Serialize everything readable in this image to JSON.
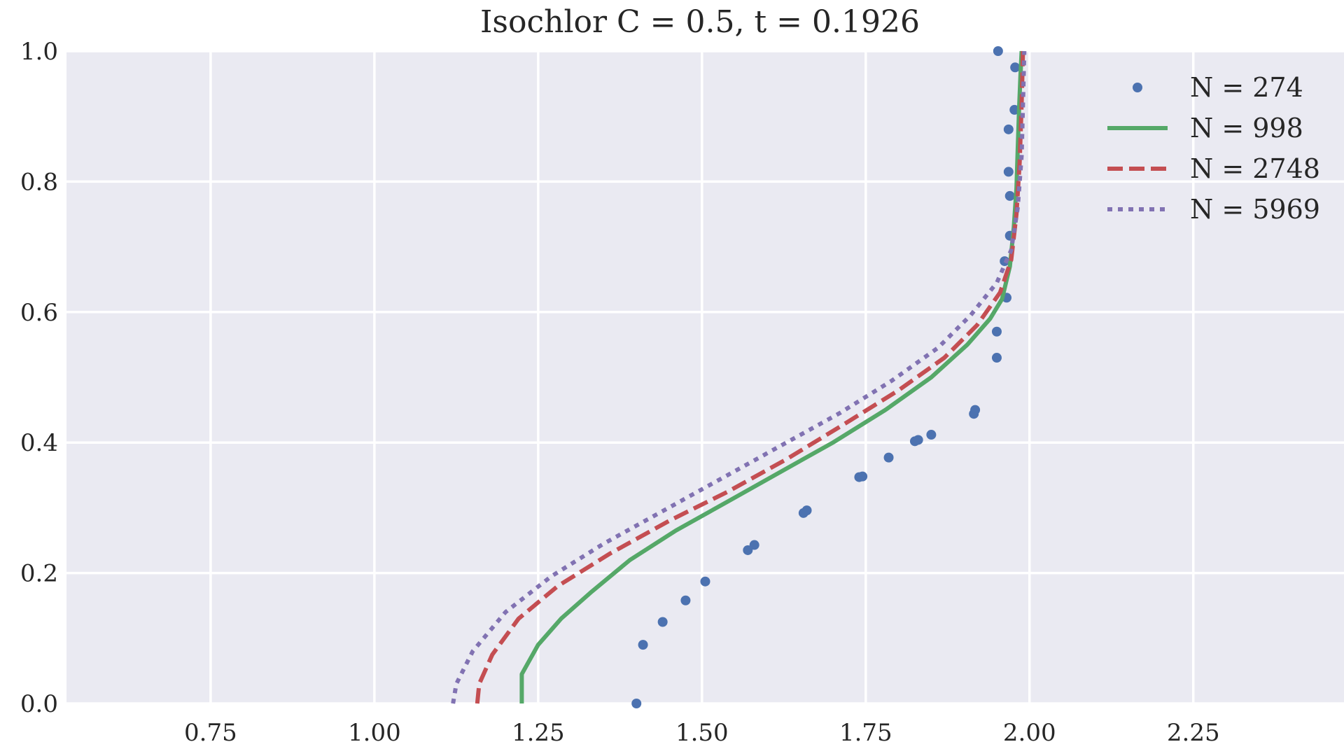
{
  "chart_data": {
    "type": "line",
    "title": "Isochlor C = 0.5, t = 0.1926",
    "xlabel": "",
    "ylabel": "",
    "xlim": [
      0.53,
      2.48
    ],
    "ylim": [
      0.0,
      1.0
    ],
    "xticks": [
      0.75,
      1.0,
      1.25,
      1.5,
      1.75,
      2.0,
      2.25
    ],
    "xtick_labels": [
      "0.75",
      "1.00",
      "1.25",
      "1.50",
      "1.75",
      "2.00",
      "2.25"
    ],
    "yticks": [
      0.0,
      0.2,
      0.4,
      0.6,
      0.8,
      1.0
    ],
    "ytick_labels": [
      "0.0",
      "0.2",
      "0.4",
      "0.6",
      "0.8",
      "1.0"
    ],
    "grid": true,
    "background": "#eaeaf2",
    "legend_position": "top-right",
    "series": [
      {
        "name": "N = 274",
        "style": "points",
        "color": "#4c72b0",
        "x": [
          1.4,
          1.41,
          1.44,
          1.475,
          1.505,
          1.57,
          1.58,
          1.655,
          1.66,
          1.74,
          1.745,
          1.785,
          1.825,
          1.83,
          1.85,
          1.915,
          1.917,
          1.95,
          1.95,
          1.965,
          1.962,
          1.97,
          1.97,
          1.968,
          1.968,
          1.977,
          1.978,
          1.952
        ],
        "y": [
          0.0,
          0.09,
          0.125,
          0.158,
          0.187,
          0.235,
          0.243,
          0.292,
          0.296,
          0.347,
          0.348,
          0.377,
          0.402,
          0.404,
          0.412,
          0.444,
          0.45,
          0.53,
          0.57,
          0.622,
          0.678,
          0.717,
          0.778,
          0.815,
          0.88,
          0.91,
          0.975,
          1.0
        ]
      },
      {
        "name": "N = 998",
        "style": "solid",
        "color": "#55a868",
        "x": [
          1.225,
          1.225,
          1.25,
          1.285,
          1.33,
          1.39,
          1.46,
          1.54,
          1.62,
          1.7,
          1.78,
          1.85,
          1.905,
          1.94,
          1.958,
          1.97,
          1.976,
          1.98,
          1.982,
          1.984,
          1.986,
          1.988
        ],
        "y": [
          0.0,
          0.045,
          0.09,
          0.13,
          0.17,
          0.22,
          0.265,
          0.31,
          0.355,
          0.4,
          0.45,
          0.5,
          0.55,
          0.59,
          0.62,
          0.67,
          0.73,
          0.79,
          0.85,
          0.91,
          0.96,
          1.0
        ]
      },
      {
        "name": "N = 2748",
        "style": "dashed",
        "color": "#c44e52",
        "x": [
          1.157,
          1.16,
          1.18,
          1.22,
          1.28,
          1.36,
          1.45,
          1.54,
          1.63,
          1.72,
          1.8,
          1.87,
          1.92,
          1.955,
          1.972,
          1.98,
          1.985,
          1.988,
          1.99
        ],
        "y": [
          0.0,
          0.03,
          0.075,
          0.13,
          0.18,
          0.23,
          0.28,
          0.325,
          0.375,
          0.43,
          0.48,
          0.53,
          0.58,
          0.63,
          0.68,
          0.75,
          0.83,
          0.92,
          1.0
        ]
      },
      {
        "name": "N = 5969",
        "style": "dotted",
        "color": "#8172b2",
        "x": [
          1.12,
          1.125,
          1.15,
          1.2,
          1.27,
          1.35,
          1.44,
          1.53,
          1.62,
          1.71,
          1.79,
          1.86,
          1.91,
          1.95,
          1.972,
          1.982,
          1.988,
          1.99,
          1.992
        ],
        "y": [
          0.0,
          0.03,
          0.08,
          0.14,
          0.195,
          0.245,
          0.295,
          0.345,
          0.395,
          0.445,
          0.495,
          0.545,
          0.595,
          0.645,
          0.695,
          0.76,
          0.84,
          0.92,
          1.0
        ]
      }
    ]
  }
}
